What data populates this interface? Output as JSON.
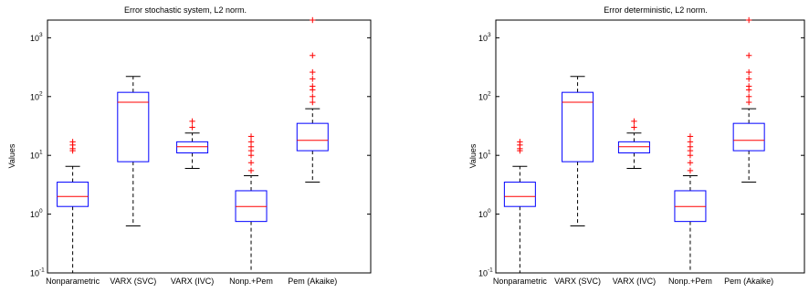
{
  "chart_data": [
    {
      "type": "boxplot",
      "title": "Error stochastic system, L2 norm.",
      "ylabel": "Values",
      "xlabel": "",
      "yscale": "log",
      "ylim": [
        0.1,
        2000
      ],
      "yticks": [
        {
          "value": 0.1,
          "base": "10",
          "exp": "-1"
        },
        {
          "value": 1,
          "base": "10",
          "exp": "0"
        },
        {
          "value": 10,
          "base": "10",
          "exp": "1"
        },
        {
          "value": 100,
          "base": "10",
          "exp": "2"
        },
        {
          "value": 1000,
          "base": "10",
          "exp": "3"
        }
      ],
      "categories": [
        "Nonparametric",
        "VARX (SVC)",
        "VARX (IVC)",
        "Nonp.+Pem",
        "Pem (Akaike)"
      ],
      "boxes": [
        {
          "whisker_low": 0.1,
          "q1": 1.35,
          "median": 2.0,
          "q3": 3.5,
          "whisker_high": 6.5,
          "outliers": [
            12,
            13,
            15,
            17
          ]
        },
        {
          "whisker_low": 0.63,
          "q1": 7.8,
          "median": 80,
          "q3": 118,
          "whisker_high": 220,
          "outliers": []
        },
        {
          "whisker_low": 6,
          "q1": 11,
          "median": 14,
          "q3": 17,
          "whisker_high": 24,
          "outliers": [
            30,
            38
          ]
        },
        {
          "whisker_low": 0.1,
          "q1": 0.75,
          "median": 1.35,
          "q3": 2.5,
          "whisker_high": 4.5,
          "outliers": [
            5.5,
            7.5,
            10,
            12,
            14,
            17,
            21
          ]
        },
        {
          "whisker_low": 3.5,
          "q1": 12,
          "median": 18,
          "q3": 35,
          "whisker_high": 62,
          "outliers": [
            80,
            100,
            130,
            150,
            200,
            260,
            500,
            2000
          ]
        }
      ],
      "colors": {
        "box": "#0000ff",
        "median": "#ff0000",
        "outlier": "#ff0000",
        "whisker": "#000000"
      }
    },
    {
      "type": "boxplot",
      "title": "Error deterministic, L2 norm.",
      "ylabel": "Values",
      "xlabel": "",
      "yscale": "log",
      "ylim": [
        0.1,
        2000
      ],
      "yticks": [
        {
          "value": 0.1,
          "base": "10",
          "exp": "-1"
        },
        {
          "value": 1,
          "base": "10",
          "exp": "0"
        },
        {
          "value": 10,
          "base": "10",
          "exp": "1"
        },
        {
          "value": 100,
          "base": "10",
          "exp": "2"
        },
        {
          "value": 1000,
          "base": "10",
          "exp": "3"
        }
      ],
      "categories": [
        "Nonparametric",
        "VARX (SVC)",
        "VARX (IVC)",
        "Nonp.+Pem",
        "Pem (Akaike)"
      ],
      "boxes": [
        {
          "whisker_low": 0.1,
          "q1": 1.35,
          "median": 2.0,
          "q3": 3.5,
          "whisker_high": 6.5,
          "outliers": [
            12,
            13,
            15,
            17
          ]
        },
        {
          "whisker_low": 0.63,
          "q1": 7.8,
          "median": 80,
          "q3": 118,
          "whisker_high": 220,
          "outliers": []
        },
        {
          "whisker_low": 6,
          "q1": 11,
          "median": 14,
          "q3": 17,
          "whisker_high": 24,
          "outliers": [
            30,
            38
          ]
        },
        {
          "whisker_low": 0.1,
          "q1": 0.75,
          "median": 1.35,
          "q3": 2.5,
          "whisker_high": 4.5,
          "outliers": [
            5.5,
            7.5,
            10,
            12,
            14,
            17,
            21
          ]
        },
        {
          "whisker_low": 3.5,
          "q1": 12,
          "median": 18,
          "q3": 35,
          "whisker_high": 62,
          "outliers": [
            80,
            100,
            130,
            150,
            200,
            260,
            500,
            2000
          ]
        }
      ],
      "colors": {
        "box": "#0000ff",
        "median": "#ff0000",
        "outlier": "#ff0000",
        "whisker": "#000000"
      }
    }
  ]
}
